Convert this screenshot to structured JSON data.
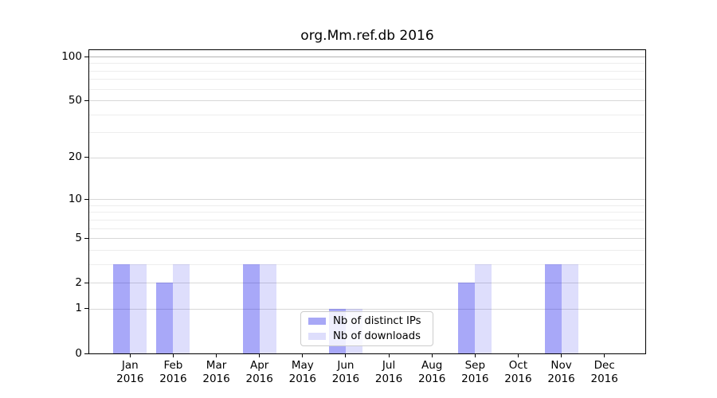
{
  "chart_data": {
    "type": "bar",
    "title": "org.Mm.ref.db 2016",
    "x_year": "2016",
    "categories": [
      "Jan",
      "Feb",
      "Mar",
      "Apr",
      "May",
      "Jun",
      "Jul",
      "Aug",
      "Sep",
      "Oct",
      "Nov",
      "Dec"
    ],
    "series": [
      {
        "name": "Nb of distinct IPs",
        "color": "#a8a8f6",
        "fill_rgba": "rgba(20,20,235,0.37)",
        "values": [
          3,
          2,
          0,
          3,
          0,
          1,
          0,
          0,
          2,
          0,
          3,
          0
        ]
      },
      {
        "name": "Nb of downloads",
        "color": "#dedefc",
        "fill_rgba": "rgba(20,20,235,0.14)",
        "values": [
          3,
          3,
          0,
          3,
          0,
          1,
          0,
          0,
          3,
          0,
          3,
          0
        ]
      }
    ],
    "xlabel": "",
    "ylabel": "",
    "y_axis": {
      "scale": "log1p",
      "major_ticks": [
        0,
        1,
        2,
        5,
        10,
        20,
        50,
        100
      ],
      "minor_ticks": [
        3,
        4,
        6,
        7,
        8,
        9,
        30,
        40,
        60,
        70,
        80,
        90
      ],
      "ylim": [
        0,
        112
      ]
    },
    "grid": "horizontal",
    "legend_position": "lower center"
  }
}
